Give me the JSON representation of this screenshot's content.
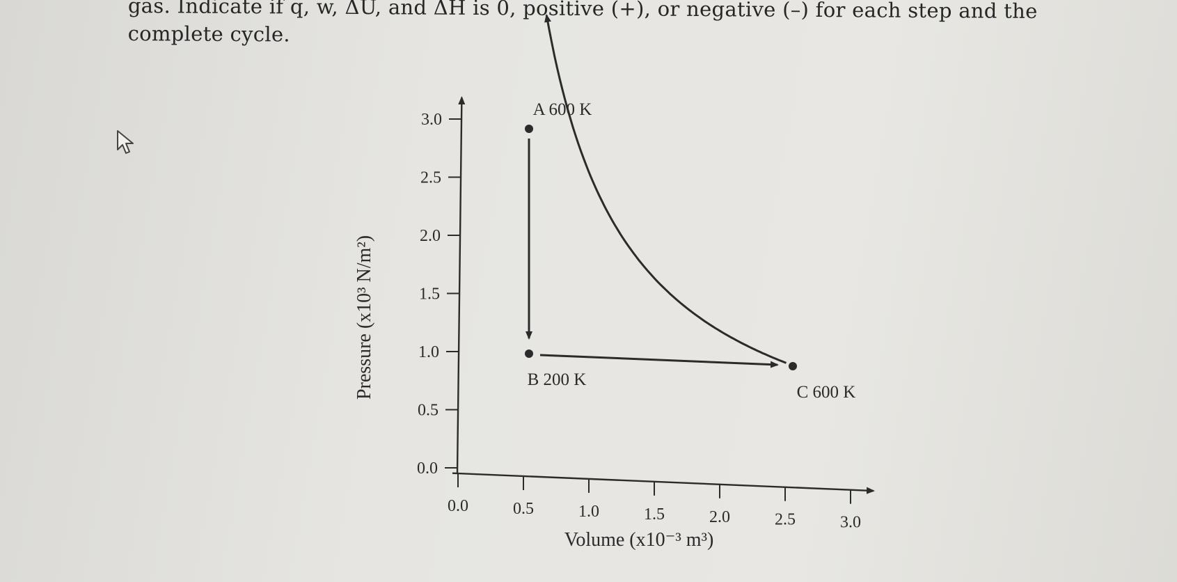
{
  "problem": {
    "line1": "gas. Indicate if q, w, ΔU, and ΔH is 0, positive (+), or negative (–) for each step and the",
    "line2": "complete cycle."
  },
  "cursor": {
    "icon": "arrow-cursor-icon"
  },
  "chart_data": {
    "type": "scatter",
    "xlabel": "Volume (x10⁻³ m³)",
    "ylabel": "Pressure (x10³ N/m²)",
    "xlim": [
      0,
      3.0
    ],
    "ylim": [
      0,
      3.0
    ],
    "x_ticks": [
      "0.0",
      "0.5",
      "1.0",
      "1.5",
      "2.0",
      "2.5",
      "3.0"
    ],
    "y_ticks": [
      "0.0",
      "0.5",
      "1.0",
      "1.5",
      "2.0",
      "2.5",
      "3.0"
    ],
    "points": [
      {
        "id": "A",
        "label": "A  600 K",
        "x": 0.5,
        "y": 3.0
      },
      {
        "id": "B",
        "label": "B  200 K",
        "x": 0.5,
        "y": 1.0
      },
      {
        "id": "C",
        "label": "C  600 K",
        "x": 2.5,
        "y": 1.0
      }
    ],
    "paths": [
      {
        "from": "A",
        "to": "B",
        "kind": "isochoric"
      },
      {
        "from": "B",
        "to": "C",
        "kind": "isobaric"
      },
      {
        "from": "C",
        "to": "A",
        "kind": "isothermal"
      }
    ],
    "grid": false,
    "line_color": "#2b2b2b"
  }
}
